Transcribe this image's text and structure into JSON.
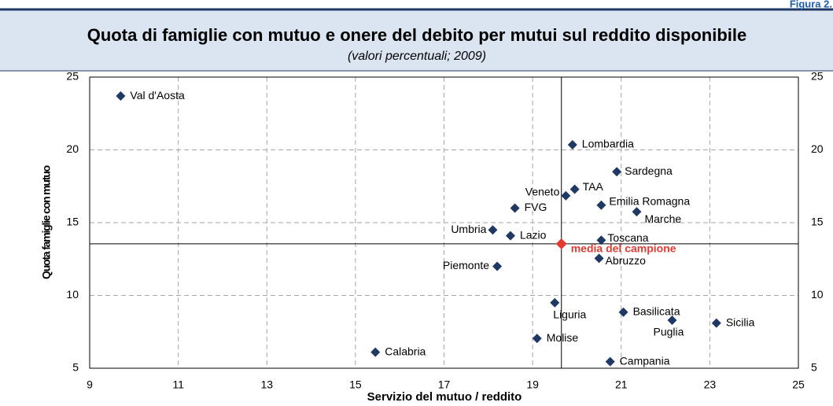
{
  "figure_label": "Figura 2.",
  "chart_data": {
    "type": "scatter",
    "title": "Quota di famiglie con mutuo e onere del debito per mutui sul reddito disponibile",
    "subtitle": "(valori percentuali; 2009)",
    "x_label": "Servizio del mutuo / reddito",
    "y_label": "Quota famiglie con mutuo",
    "point_labels": [
      "Val d'Aosta",
      "Lombardia",
      "Sardegna",
      "TAA",
      "Veneto",
      "Emilia Romagna",
      "FVG",
      "Marche",
      "Umbria",
      "Lazio",
      "Toscana",
      "Abruzzo",
      "Piemonte",
      "Liguria",
      "Basilicata",
      "Puglia",
      "Sicilia",
      "Molise",
      "Calabria",
      "Campania"
    ],
    "x": [
      9.7,
      19.9,
      20.9,
      19.95,
      19.75,
      20.55,
      18.6,
      21.35,
      18.1,
      18.5,
      20.55,
      20.5,
      18.2,
      19.5,
      21.05,
      22.15,
      23.15,
      19.1,
      15.45,
      20.75
    ],
    "values": [
      23.7,
      20.35,
      18.5,
      17.3,
      16.85,
      16.2,
      16.0,
      15.75,
      14.5,
      14.1,
      13.8,
      12.55,
      12.0,
      9.5,
      8.85,
      8.3,
      8.1,
      7.05,
      6.1,
      5.45
    ],
    "color": "#1f3864",
    "reference": {
      "label": "media del campione",
      "x": 19.65,
      "y": 13.55,
      "color": "#e03c31"
    },
    "xlim": [
      9,
      25
    ],
    "xticks": [
      9,
      11,
      13,
      15,
      17,
      19,
      21,
      23,
      25
    ],
    "ylim": [
      5,
      25
    ],
    "yticks": [
      5,
      10,
      15,
      20,
      25
    ],
    "grid": true
  }
}
